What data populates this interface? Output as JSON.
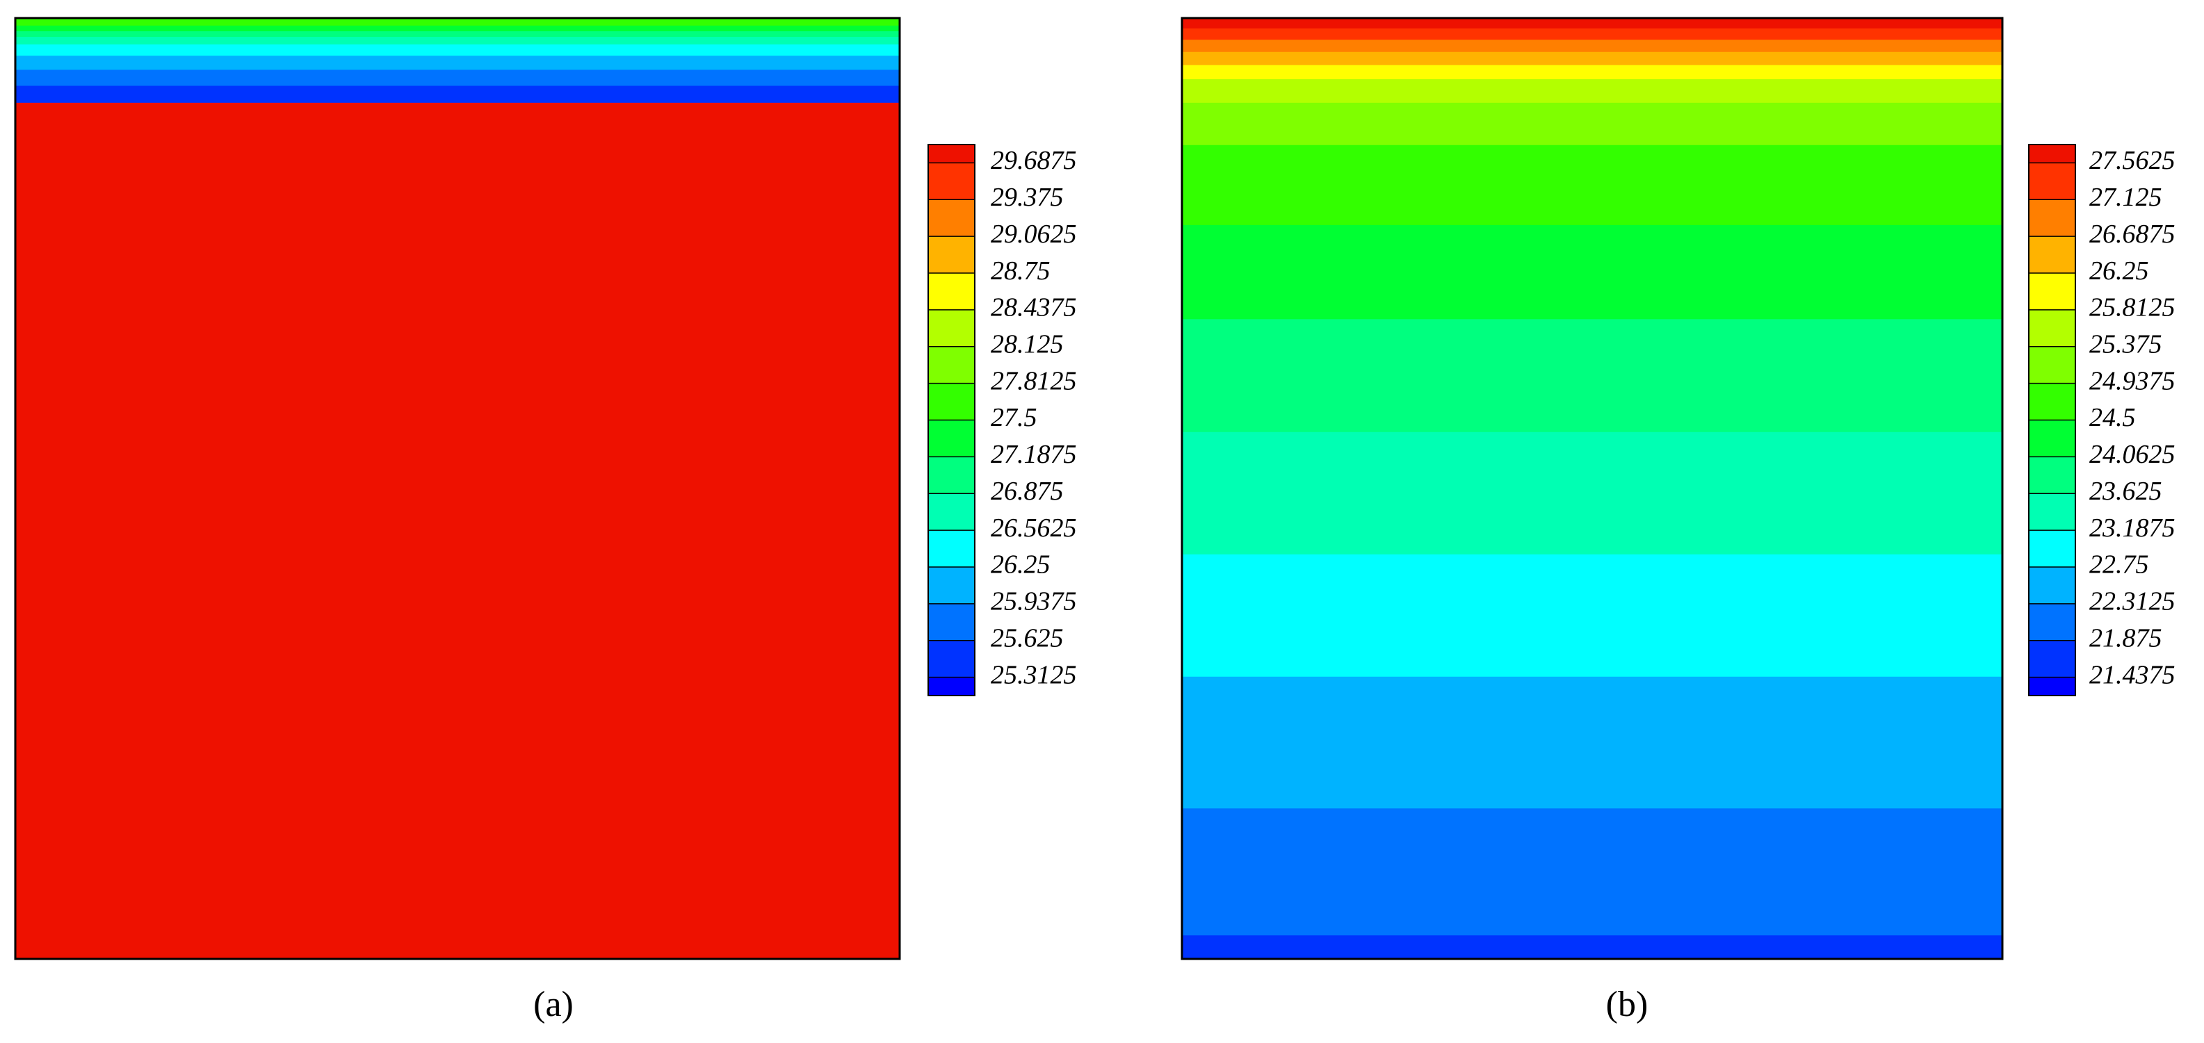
{
  "chart_data": [
    {
      "type": "contour",
      "label": "(a)",
      "levels": [
        25.3125,
        25.625,
        25.9375,
        26.25,
        26.5625,
        26.875,
        27.1875,
        27.5,
        27.8125,
        28.125,
        28.4375,
        28.75,
        29.0625,
        29.375,
        29.6875
      ],
      "colors": [
        "#0000ff",
        "#0033ff",
        "#0073ff",
        "#00b3ff",
        "#00ffff",
        "#00ffb3",
        "#00ff7f",
        "#00ff33",
        "#33ff00",
        "#7fff00",
        "#b3ff00",
        "#ffff00",
        "#ffb300",
        "#ff7f00",
        "#ff3300",
        "#ee1100"
      ]
    },
    {
      "type": "contour",
      "label": "(b)",
      "levels": [
        21.4375,
        21.875,
        22.3125,
        22.75,
        23.1875,
        23.625,
        24.0625,
        24.5,
        24.9375,
        25.375,
        25.8125,
        26.25,
        26.6875,
        27.125,
        27.5625
      ],
      "colors": [
        "#0000ff",
        "#0033ff",
        "#0073ff",
        "#00b3ff",
        "#00ffff",
        "#00ffb3",
        "#00ff7f",
        "#00ff33",
        "#33ff00",
        "#7fff00",
        "#b3ff00",
        "#ffff00",
        "#ffb300",
        "#ff7f00",
        "#ff3300",
        "#ee1100"
      ]
    }
  ]
}
